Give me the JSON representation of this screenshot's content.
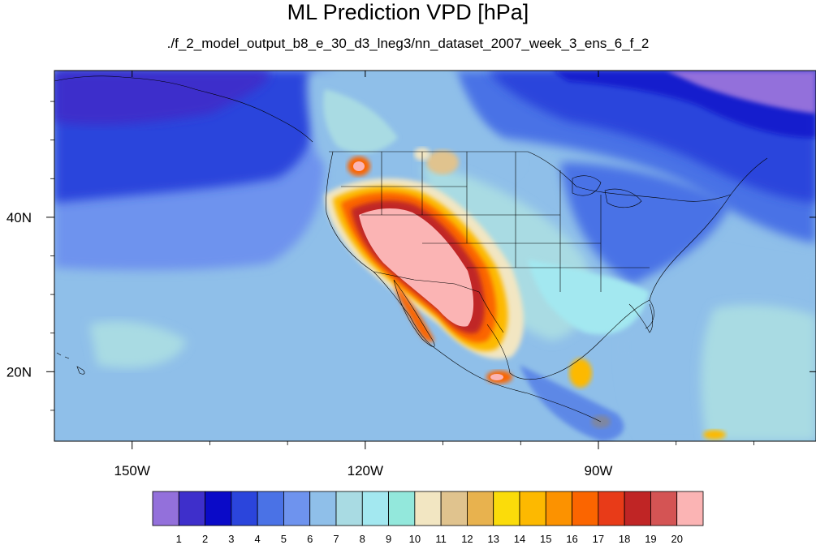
{
  "title": "ML Prediction VPD [hPa]",
  "subtitle": "./f_2_model_output_b8_e_30_d3_lneg3/nn_dataset_2007_week_3_ens_6_f_2",
  "map": {
    "projection": "cylindrical-equidistant",
    "lon_range": [
      -160,
      -62
    ],
    "lat_range": [
      11,
      59
    ],
    "lon_ticks": [
      {
        "value": -150,
        "label": "150W"
      },
      {
        "value": -120,
        "label": "120W"
      },
      {
        "value": -90,
        "label": "90W"
      }
    ],
    "lat_ticks": [
      {
        "value": 40,
        "label": "40N"
      },
      {
        "value": 20,
        "label": "20N"
      }
    ],
    "minor_lon_ticks": [
      -140,
      -130,
      -110,
      -100,
      -80,
      -70
    ],
    "minor_lat_ticks": [
      15,
      25,
      30,
      35,
      45,
      50,
      55
    ]
  },
  "colorbar": {
    "colors": [
      "#9370db",
      "#3e2fcb",
      "#0a0ac8",
      "#2b45dc",
      "#4a72e6",
      "#6e93ee",
      "#8fbfe9",
      "#a9dbe3",
      "#a3e8f0",
      "#93e8dc",
      "#f2e6c2",
      "#e0c38e",
      "#e8b24e",
      "#fbdc0a",
      "#fdb900",
      "#fc9200",
      "#fb6500",
      "#e83b18",
      "#c02525",
      "#d45454",
      "#fbb4b4"
    ],
    "labels": [
      "1",
      "2",
      "3",
      "4",
      "5",
      "6",
      "7",
      "8",
      "9",
      "10",
      "11",
      "12",
      "13",
      "14",
      "15",
      "16",
      "17",
      "18",
      "19",
      "20"
    ]
  }
}
